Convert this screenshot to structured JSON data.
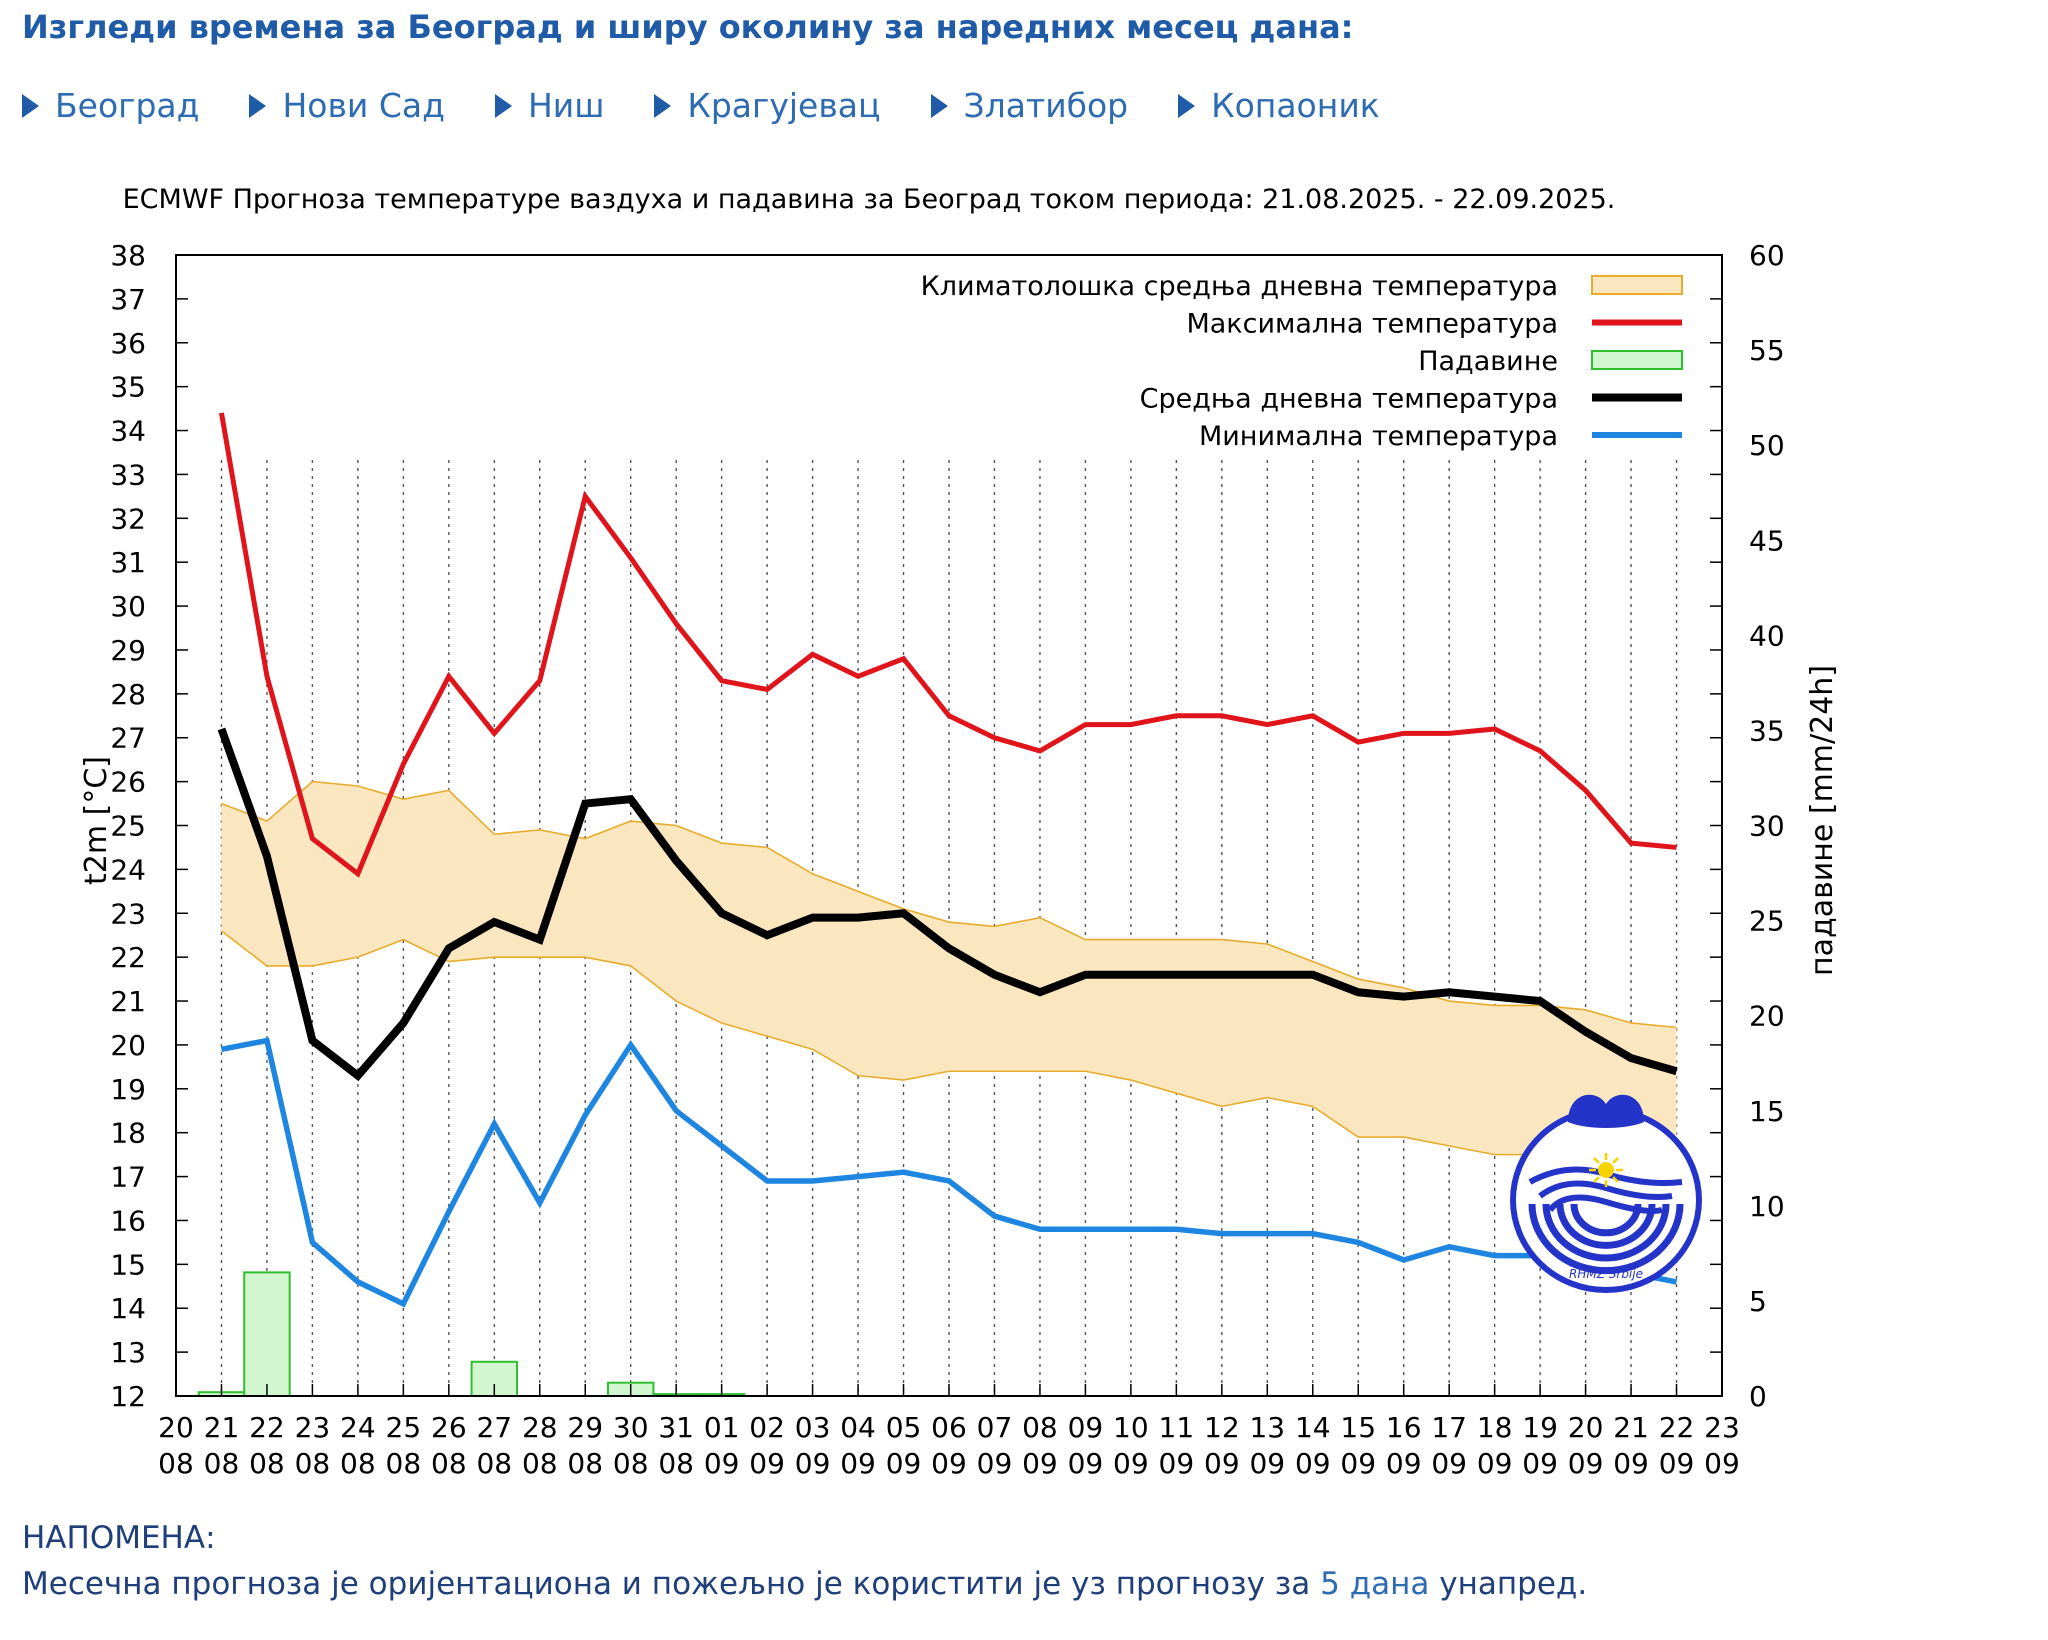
{
  "page": {
    "heading": "Изгледи времена за Београд и ширу околину за наредних месец дана:",
    "nav": [
      {
        "label": "Београд",
        "icon": "arrow-right-icon"
      },
      {
        "label": "Нови Сад",
        "icon": "arrow-right-icon"
      },
      {
        "label": "Ниш",
        "icon": "arrow-right-icon"
      },
      {
        "label": "Крагујевац",
        "icon": "arrow-right-icon"
      },
      {
        "label": "Златибор",
        "icon": "arrow-right-icon"
      },
      {
        "label": "Копаоник",
        "icon": "arrow-right-icon"
      }
    ],
    "note_title": "НАПОМЕНА:",
    "note_text_before": "Месечна прогноза је оријентациона и пожељно је користити је уз прогнозу за",
    "note_link": "5 дана",
    "note_text_after": "унапред."
  },
  "chart_data": {
    "type": "line",
    "title": "ECMWF Прогноза температуре ваздуха и падавина за Београд током периода: 21.08.2025. - 22.09.2025.",
    "ylabel": "t2m [°C]",
    "y2label": "падавине [mm/24h]",
    "ylim": [
      12,
      38
    ],
    "y2lim": [
      0,
      60
    ],
    "yticks": [
      12,
      13,
      14,
      15,
      16,
      17,
      18,
      19,
      20,
      21,
      22,
      23,
      24,
      25,
      26,
      27,
      28,
      29,
      30,
      31,
      32,
      33,
      34,
      35,
      36,
      37,
      38
    ],
    "y2ticks": [
      0,
      5,
      10,
      15,
      20,
      25,
      30,
      35,
      40,
      45,
      50,
      55,
      60
    ],
    "grid": "vertical dotted",
    "legend_position": "top-right",
    "x_ticks": [
      {
        "day": "20",
        "month": "08"
      },
      {
        "day": "21",
        "month": "08"
      },
      {
        "day": "22",
        "month": "08"
      },
      {
        "day": "23",
        "month": "08"
      },
      {
        "day": "24",
        "month": "08"
      },
      {
        "day": "25",
        "month": "08"
      },
      {
        "day": "26",
        "month": "08"
      },
      {
        "day": "27",
        "month": "08"
      },
      {
        "day": "28",
        "month": "08"
      },
      {
        "day": "29",
        "month": "08"
      },
      {
        "day": "30",
        "month": "08"
      },
      {
        "day": "31",
        "month": "08"
      },
      {
        "day": "01",
        "month": "09"
      },
      {
        "day": "02",
        "month": "09"
      },
      {
        "day": "03",
        "month": "09"
      },
      {
        "day": "04",
        "month": "09"
      },
      {
        "day": "05",
        "month": "09"
      },
      {
        "day": "06",
        "month": "09"
      },
      {
        "day": "07",
        "month": "09"
      },
      {
        "day": "08",
        "month": "09"
      },
      {
        "day": "09",
        "month": "09"
      },
      {
        "day": "10",
        "month": "09"
      },
      {
        "day": "11",
        "month": "09"
      },
      {
        "day": "12",
        "month": "09"
      },
      {
        "day": "13",
        "month": "09"
      },
      {
        "day": "14",
        "month": "09"
      },
      {
        "day": "15",
        "month": "09"
      },
      {
        "day": "16",
        "month": "09"
      },
      {
        "day": "17",
        "month": "09"
      },
      {
        "day": "18",
        "month": "09"
      },
      {
        "day": "19",
        "month": "09"
      },
      {
        "day": "20",
        "month": "09"
      },
      {
        "day": "21",
        "month": "09"
      },
      {
        "day": "22",
        "month": "09"
      },
      {
        "day": "23",
        "month": "09"
      }
    ],
    "dates": [
      "2025-08-21",
      "2025-08-22",
      "2025-08-23",
      "2025-08-24",
      "2025-08-25",
      "2025-08-26",
      "2025-08-27",
      "2025-08-28",
      "2025-08-29",
      "2025-08-30",
      "2025-08-31",
      "2025-09-01",
      "2025-09-02",
      "2025-09-03",
      "2025-09-04",
      "2025-09-05",
      "2025-09-06",
      "2025-09-07",
      "2025-09-08",
      "2025-09-09",
      "2025-09-10",
      "2025-09-11",
      "2025-09-12",
      "2025-09-13",
      "2025-09-14",
      "2025-09-15",
      "2025-09-16",
      "2025-09-17",
      "2025-09-18",
      "2025-09-19",
      "2025-09-20",
      "2025-09-21",
      "2025-09-22"
    ],
    "series": [
      {
        "name": "Максимална температура",
        "color": "#e0141b",
        "values": [
          34.4,
          28.4,
          24.7,
          23.9,
          26.4,
          28.4,
          27.1,
          28.3,
          32.5,
          31.1,
          29.6,
          28.3,
          28.1,
          28.9,
          28.4,
          28.8,
          27.5,
          27.0,
          26.7,
          27.3,
          27.3,
          27.5,
          27.5,
          27.3,
          27.5,
          26.9,
          27.1,
          27.1,
          27.2,
          26.7,
          25.8,
          24.6,
          24.5
        ]
      },
      {
        "name": "Средња дневна температура",
        "color": "#000000",
        "values": [
          27.2,
          24.3,
          20.1,
          19.3,
          20.5,
          22.2,
          22.8,
          22.4,
          25.5,
          25.6,
          24.2,
          23.0,
          22.5,
          22.9,
          22.9,
          23.0,
          22.2,
          21.6,
          21.2,
          21.6,
          21.6,
          21.6,
          21.6,
          21.6,
          21.6,
          21.2,
          21.1,
          21.2,
          21.1,
          21.0,
          20.3,
          19.7,
          19.4
        ]
      },
      {
        "name": "Минимална температура",
        "color": "#1e86e0",
        "values": [
          19.9,
          20.1,
          15.5,
          14.6,
          14.1,
          16.2,
          18.2,
          16.4,
          18.4,
          20.0,
          18.5,
          17.7,
          16.9,
          16.9,
          17.0,
          17.1,
          16.9,
          16.1,
          15.8,
          15.8,
          15.8,
          15.8,
          15.7,
          15.7,
          15.7,
          15.5,
          15.1,
          15.4,
          15.2,
          15.2,
          15.0,
          14.8,
          14.6
        ]
      },
      {
        "name": "Климатолошка средња дневна температура",
        "type": "band",
        "color": "#fbe7bf",
        "edge_color": "#e8ac2c",
        "upper": [
          25.5,
          25.1,
          26.0,
          25.9,
          25.6,
          25.8,
          24.8,
          24.9,
          24.7,
          25.1,
          25.0,
          24.6,
          24.5,
          23.9,
          23.5,
          23.1,
          22.8,
          22.7,
          22.9,
          22.4,
          22.4,
          22.4,
          22.4,
          22.3,
          21.9,
          21.5,
          21.3,
          21.0,
          20.9,
          20.9,
          20.8,
          20.5,
          20.4
        ],
        "lower": [
          22.6,
          21.8,
          21.8,
          22.0,
          22.4,
          21.9,
          22.0,
          22.0,
          22.0,
          21.8,
          21.0,
          20.5,
          20.2,
          19.9,
          19.3,
          19.2,
          19.4,
          19.4,
          19.4,
          19.4,
          19.2,
          18.9,
          18.6,
          18.8,
          18.6,
          17.9,
          17.9,
          17.7,
          17.5,
          17.5,
          17.3,
          17.3,
          17.1
        ]
      }
    ],
    "precipitation": {
      "name": "Падавине",
      "color": "#d2f6cf",
      "edge_color": "#2fbf2f",
      "bars": [
        {
          "date": "2025-08-21",
          "value": 0.2
        },
        {
          "date": "2025-08-22",
          "value": 6.5
        },
        {
          "date": "2025-08-27",
          "value": 1.8
        },
        {
          "date": "2025-08-30",
          "value": 0.7
        },
        {
          "date": "2025-08-31",
          "value": 0.1
        },
        {
          "date": "2025-09-01",
          "value": 0.1
        }
      ]
    },
    "legend": [
      {
        "label": "Климатолошка средња дневна температура",
        "kind": "band",
        "color": "#fbe7bf",
        "edge": "#e8ac2c"
      },
      {
        "label": "Максимална температура",
        "kind": "line",
        "color": "#e0141b"
      },
      {
        "label": "Падавине",
        "kind": "box",
        "color": "#d2f6cf",
        "edge": "#2fbf2f"
      },
      {
        "label": "Средња дневна температура",
        "kind": "line",
        "color": "#000000"
      },
      {
        "label": "Минимална температура",
        "kind": "line",
        "color": "#1e86e0"
      }
    ],
    "logo": {
      "icon": "rhmz-logo-icon",
      "color": "#2433c8",
      "text": "RHMZ Srbije"
    }
  }
}
